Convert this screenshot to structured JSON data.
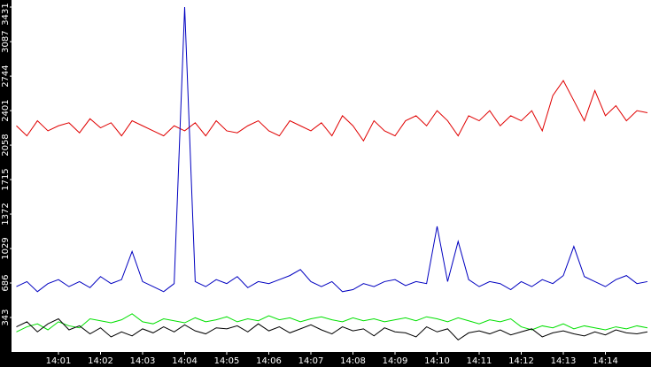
{
  "chart_data": {
    "type": "line",
    "categories": [
      null,
      null,
      null,
      null,
      "14:01",
      null,
      null,
      null,
      "14:02",
      null,
      null,
      null,
      "14:03",
      null,
      null,
      null,
      "14:04",
      null,
      null,
      null,
      "14:05",
      null,
      null,
      null,
      "14:06",
      null,
      null,
      null,
      "14:07",
      null,
      null,
      null,
      "14:08",
      null,
      null,
      null,
      "14:09",
      null,
      null,
      null,
      "14:10",
      null,
      null,
      null,
      "14:11",
      null,
      null,
      null,
      "14:12",
      null,
      null,
      null,
      "14:13",
      null,
      null,
      null,
      "14:14",
      null,
      null,
      null,
      null
    ],
    "ylim": [
      0,
      3431
    ],
    "yticks": [
      343,
      686,
      1029,
      1372,
      1715,
      2058,
      2401,
      2744,
      3087,
      3431
    ],
    "series": [
      {
        "color": "#e00000",
        "values": [
          2250,
          2150,
          2300,
          2200,
          2250,
          2280,
          2180,
          2320,
          2230,
          2280,
          2150,
          2300,
          2250,
          2200,
          2150,
          2250,
          2200,
          2280,
          2150,
          2300,
          2200,
          2180,
          2250,
          2300,
          2200,
          2150,
          2300,
          2250,
          2200,
          2280,
          2150,
          2350,
          2250,
          2100,
          2300,
          2200,
          2150,
          2300,
          2350,
          2250,
          2400,
          2300,
          2150,
          2350,
          2300,
          2400,
          2250,
          2350,
          2300,
          2400,
          2200,
          2550,
          2700,
          2500,
          2300,
          2600,
          2350,
          2450,
          2300,
          2400,
          2380
        ]
      },
      {
        "color": "#0000c0",
        "values": [
          650,
          700,
          600,
          680,
          720,
          650,
          700,
          640,
          750,
          680,
          720,
          1000,
          700,
          650,
          600,
          680,
          3431,
          700,
          650,
          720,
          680,
          750,
          640,
          700,
          680,
          720,
          760,
          820,
          700,
          650,
          700,
          600,
          620,
          680,
          650,
          700,
          720,
          660,
          700,
          680,
          1250,
          700,
          1100,
          720,
          650,
          700,
          680,
          620,
          700,
          650,
          720,
          680,
          760,
          1050,
          750,
          700,
          650,
          720,
          760,
          680,
          700
        ]
      },
      {
        "color": "#00e000",
        "values": [
          200,
          250,
          280,
          220,
          300,
          260,
          240,
          330,
          310,
          290,
          320,
          380,
          300,
          280,
          330,
          310,
          290,
          340,
          300,
          320,
          350,
          300,
          330,
          310,
          360,
          320,
          340,
          300,
          330,
          350,
          320,
          300,
          340,
          310,
          330,
          300,
          320,
          340,
          310,
          350,
          330,
          300,
          340,
          310,
          280,
          320,
          300,
          330,
          250,
          220,
          260,
          240,
          280,
          230,
          260,
          240,
          220,
          250,
          230,
          260,
          240
        ]
      },
      {
        "color": "#000000",
        "values": [
          250,
          300,
          200,
          280,
          330,
          220,
          260,
          180,
          240,
          150,
          200,
          160,
          230,
          190,
          250,
          200,
          270,
          210,
          180,
          240,
          230,
          260,
          200,
          280,
          210,
          250,
          190,
          230,
          270,
          220,
          180,
          250,
          210,
          230,
          160,
          240,
          200,
          190,
          150,
          250,
          200,
          230,
          120,
          190,
          210,
          180,
          220,
          170,
          200,
          230,
          150,
          190,
          210,
          180,
          160,
          200,
          170,
          220,
          190,
          180,
          200
        ]
      }
    ]
  }
}
